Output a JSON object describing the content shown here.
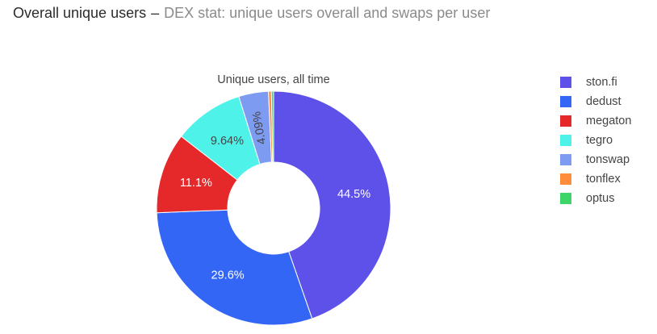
{
  "header": {
    "title": "Overall unique users",
    "separator": "–",
    "subtitle": "DEX stat: unique users overall and swaps per user"
  },
  "chart_data": {
    "type": "pie",
    "hole": true,
    "title": "Unique users, all time",
    "legend_position": "right",
    "slices": [
      {
        "label": "ston.fi",
        "value": 44.5,
        "text": "44.5%",
        "color": "#5d51e9"
      },
      {
        "label": "dedust",
        "value": 29.6,
        "text": "29.6%",
        "color": "#3466f5"
      },
      {
        "label": "megaton",
        "value": 11.1,
        "text": "11.1%",
        "color": "#e5292b"
      },
      {
        "label": "tegro",
        "value": 9.64,
        "text": "9.64%",
        "color": "#4ef2e9"
      },
      {
        "label": "tonswap",
        "value": 4.09,
        "text": "4.09%",
        "color": "#7e9bf2"
      },
      {
        "label": "tonflex",
        "value": 0.4,
        "text": "",
        "color": "#ff8c3a"
      },
      {
        "label": "optus",
        "value": 0.3,
        "text": "",
        "color": "#3dd468"
      }
    ]
  }
}
